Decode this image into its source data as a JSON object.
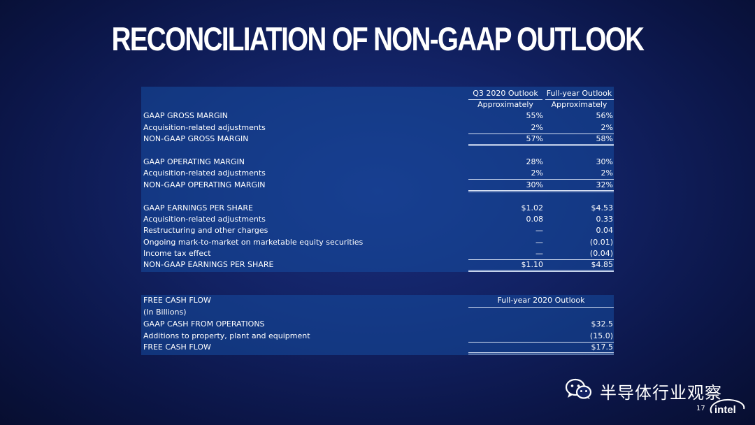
{
  "slide": {
    "title": "RECONCILIATION OF NON-GAAP OUTLOOK",
    "page_number": "17",
    "watermark": "半导体行业观察",
    "logo_text": "intel"
  },
  "outlook_table": {
    "headers": {
      "q3": "Q3 2020 Outlook",
      "fy": "Full-year Outlook",
      "q3_sub": "Approximately",
      "fy_sub": "Approximately"
    },
    "rows": [
      {
        "label": "GAAP GROSS MARGIN",
        "q3": "55%",
        "fy": "56%"
      },
      {
        "label": "Acquisition-related adjustments",
        "q3": "2%",
        "fy": "2%"
      },
      {
        "label": "NON-GAAP GROSS MARGIN",
        "q3": "57%",
        "fy": "58%"
      },
      {
        "label": "GAAP OPERATING MARGIN",
        "q3": "28%",
        "fy": "30%"
      },
      {
        "label": "Acquisition-related adjustments",
        "q3": "2%",
        "fy": "2%"
      },
      {
        "label": "NON-GAAP OPERATING MARGIN",
        "q3": "30%",
        "fy": "32%"
      },
      {
        "label": "GAAP EARNINGS PER SHARE",
        "q3": "$1.02",
        "fy": "$4.53"
      },
      {
        "label": "Acquisition-related adjustments",
        "q3": "0.08",
        "fy": "0.33"
      },
      {
        "label": "Restructuring and other charges",
        "q3": "—",
        "fy": "0.04"
      },
      {
        "label": "Ongoing mark-to-market on marketable equity securities",
        "q3": "—",
        "fy": "(0.01)"
      },
      {
        "label": "Income tax effect",
        "q3": "—",
        "fy": "(0.04)"
      },
      {
        "label": "NON-GAAP EARNINGS PER SHARE",
        "q3": "$1.10",
        "fy": "$4.85"
      }
    ]
  },
  "fcf_table": {
    "header": "Full-year 2020 Outlook",
    "rows": [
      {
        "label": "FREE CASH FLOW",
        "value": ""
      },
      {
        "label": "(In Billions)",
        "value": ""
      },
      {
        "label": "GAAP CASH FROM OPERATIONS",
        "value": "$32.5"
      },
      {
        "label": "Additions to property, plant and equipment",
        "value": "(15.0)"
      },
      {
        "label": "FREE CASH FLOW",
        "value": "$17.5"
      }
    ]
  }
}
